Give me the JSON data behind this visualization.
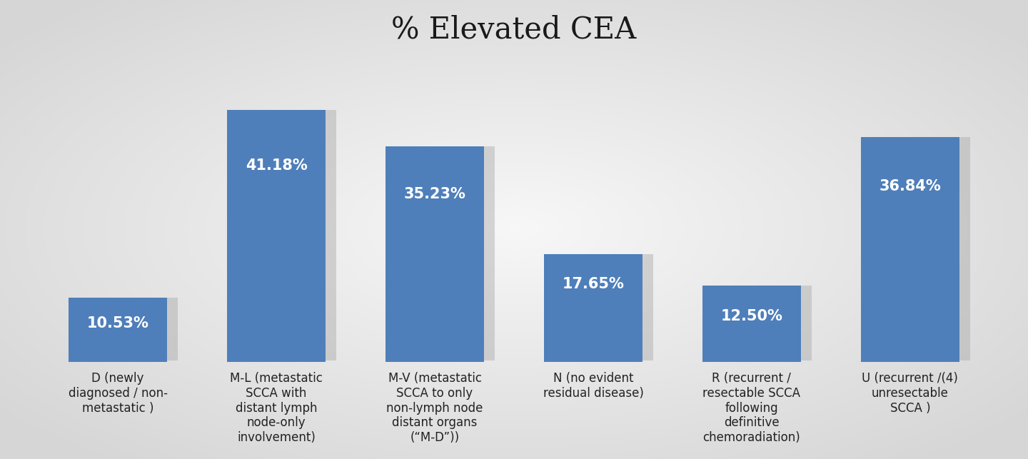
{
  "title": "% Elevated CEA",
  "categories": [
    "D (newly\ndiagnosed / non-\nmetastatic )",
    "M-L (metastatic\nSCCA with\ndistant lymph\nnode-only\ninvolvement)",
    "M-V (metastatic\nSCCA to only\nnon-lymph node\ndistant organs\n(“M-D”))",
    "N (no evident\nresidual disease)",
    "R (recurrent /\nresectable SCCA\nfollowing\ndefinitive\nchemoradiation)",
    "U (recurrent /(4)\nunresectable\nSCCA )"
  ],
  "values": [
    10.53,
    41.18,
    35.23,
    17.65,
    12.5,
    36.84
  ],
  "labels": [
    "10.53%",
    "41.18%",
    "35.23%",
    "17.65%",
    "12.50%",
    "36.84%"
  ],
  "bar_color": "#4f7fba",
  "shadow_color": "#aaaaaa",
  "title_fontsize": 30,
  "label_fontsize": 15,
  "tick_label_fontsize": 12,
  "ylim": [
    0,
    50
  ],
  "bar_width": 0.62
}
